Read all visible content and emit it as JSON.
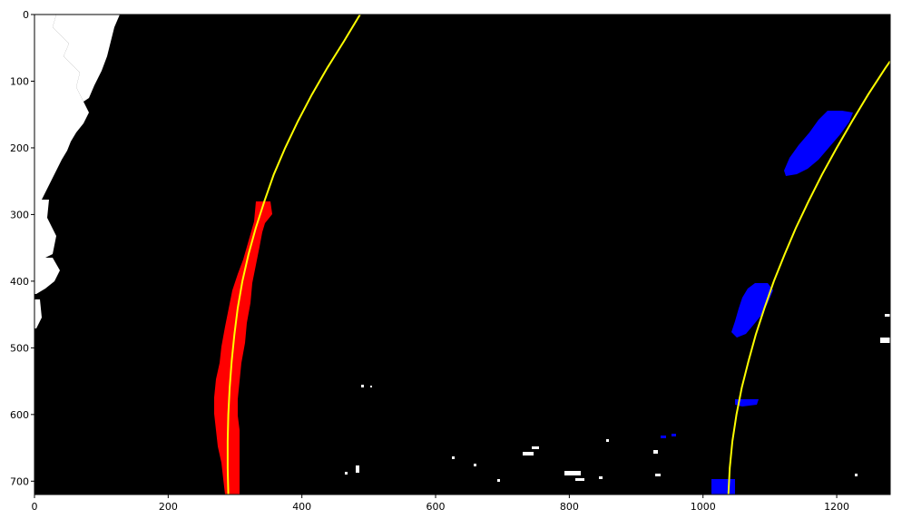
{
  "chart_data": {
    "type": "image-plot",
    "xlim": [
      0,
      1280
    ],
    "ylim": [
      720,
      0
    ],
    "x_ticks": [
      "0",
      "200",
      "400",
      "600",
      "800",
      "1000",
      "1200"
    ],
    "x_tick_values": [
      0,
      200,
      400,
      600,
      800,
      1000,
      1200
    ],
    "y_ticks": [
      "0",
      "100",
      "200",
      "300",
      "400",
      "500",
      "600",
      "700"
    ],
    "y_tick_values": [
      0,
      100,
      200,
      300,
      400,
      500,
      600,
      700
    ],
    "background_color": "#000000",
    "series": [
      {
        "role": "left-lane-fit",
        "color": "#ffff00",
        "points": [
          [
            290,
            720
          ],
          [
            289,
            680
          ],
          [
            289,
            640
          ],
          [
            290,
            600
          ],
          [
            292,
            560
          ],
          [
            295,
            520
          ],
          [
            299,
            480
          ],
          [
            304,
            440
          ],
          [
            311,
            400
          ],
          [
            320,
            360
          ],
          [
            331,
            320
          ],
          [
            344,
            280
          ],
          [
            358,
            240
          ],
          [
            375,
            200
          ],
          [
            394,
            160
          ],
          [
            415,
            120
          ],
          [
            438,
            80
          ],
          [
            463,
            40
          ],
          [
            487,
            0
          ]
        ]
      },
      {
        "role": "right-lane-fit",
        "color": "#ffff00",
        "points": [
          [
            1038,
            720
          ],
          [
            1040,
            680
          ],
          [
            1044,
            640
          ],
          [
            1050,
            600
          ],
          [
            1058,
            560
          ],
          [
            1068,
            520
          ],
          [
            1079,
            480
          ],
          [
            1092,
            440
          ],
          [
            1106,
            400
          ],
          [
            1122,
            360
          ],
          [
            1139,
            320
          ],
          [
            1158,
            280
          ],
          [
            1178,
            240
          ],
          [
            1200,
            200
          ],
          [
            1223,
            160
          ],
          [
            1247,
            120
          ],
          [
            1273,
            80
          ],
          [
            1280,
            70
          ]
        ]
      }
    ],
    "pixel_regions": [
      {
        "role": "left-lane-pixels",
        "color": "#ff0000"
      },
      {
        "role": "right-lane-pixels",
        "color": "#0000ff"
      },
      {
        "role": "other-pixels",
        "color": "#ffffff"
      }
    ]
  }
}
